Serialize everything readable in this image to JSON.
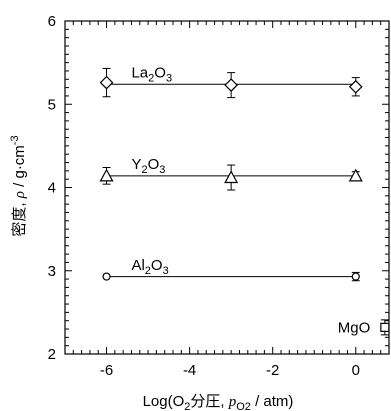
{
  "chart_data": {
    "type": "scatter",
    "xlabel": {
      "prefix": "Log(O",
      "sub1": "2",
      "cjk": "分圧, ",
      "var": "p",
      "sub2": "O2",
      "suffix": " / atm)"
    },
    "ylabel": {
      "cjk": "密度, ",
      "var": "ρ",
      "unit": " / g·cm",
      "sup": "-3"
    },
    "xlim": [
      -7,
      0.8
    ],
    "ylim": [
      2,
      6
    ],
    "x_ticks": [
      -6,
      -4,
      -2,
      0
    ],
    "x_tick_labels": [
      "-6",
      "-4",
      "-2",
      "0"
    ],
    "y_ticks": [
      2,
      3,
      4,
      5,
      6
    ],
    "y_tick_labels": [
      "2",
      "3",
      "4",
      "5",
      "6"
    ],
    "grid": false,
    "series": [
      {
        "name": "La2O3",
        "label": {
          "base": "La",
          "sub": "2",
          "mid": "O",
          "sub2": "3"
        },
        "marker": "diamond",
        "x": [
          -6,
          -3,
          0
        ],
        "y": [
          5.26,
          5.23,
          5.21
        ],
        "err": [
          0.17,
          0.15,
          0.11
        ],
        "fit_y": 5.24
      },
      {
        "name": "Y2O3",
        "label": {
          "base": "Y",
          "sub": "2",
          "mid": "O",
          "sub2": "3"
        },
        "marker": "triangle",
        "x": [
          -6,
          -3,
          0
        ],
        "y": [
          4.14,
          4.12,
          4.14
        ],
        "err": [
          0.1,
          0.15,
          0.05
        ],
        "fit_y": 4.14
      },
      {
        "name": "Al2O3",
        "label": {
          "base": "Al",
          "sub": "2",
          "mid": "O",
          "sub2": "3"
        },
        "marker": "circle",
        "x": [
          -6,
          0
        ],
        "y": [
          2.93,
          2.93
        ],
        "err": [
          0,
          0.05
        ],
        "fit_y": 2.93
      },
      {
        "name": "MgO",
        "label": {
          "base": "MgO",
          "sub": "",
          "mid": "",
          "sub2": ""
        },
        "marker": "square",
        "x": [
          0.7
        ],
        "y": [
          2.32
        ],
        "err": [
          0.09
        ],
        "fit_y": null
      }
    ]
  }
}
